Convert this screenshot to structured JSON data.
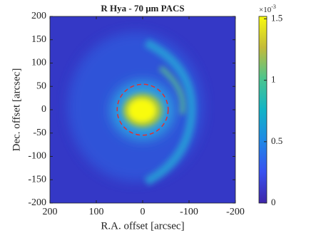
{
  "chart_data": {
    "type": "heatmap",
    "title": "R Hya - 70 μm PACS",
    "x_label": "R.A. offset [arcsec]",
    "y_label": "Dec. offset [arcsec]",
    "xlim": [
      200,
      -200
    ],
    "xticks": [
      200,
      100,
      0,
      -100,
      -200
    ],
    "ylim": [
      -200,
      200
    ],
    "yticks": [
      -200,
      -150,
      -100,
      -50,
      0,
      50,
      100,
      150,
      200
    ],
    "colorbar": {
      "lim": [
        0,
        0.00152
      ],
      "ticks": [
        {
          "value": 0,
          "label": "0"
        },
        {
          "value": 0.0005,
          "label": "0.5"
        },
        {
          "value": 0.001,
          "label": "1"
        },
        {
          "value": 0.0015,
          "label": "1.5"
        }
      ],
      "multiplier_base": "×10",
      "multiplier_exponent": "-3",
      "colors": [
        "#3e26a8",
        "#3851f0",
        "#1f88e6",
        "#12b4c6",
        "#4bc58e",
        "#c3bb3a",
        "#f9fb0e"
      ]
    },
    "circle": {
      "x": 0,
      "y": 0,
      "r": 55,
      "color": "#e03030"
    }
  }
}
